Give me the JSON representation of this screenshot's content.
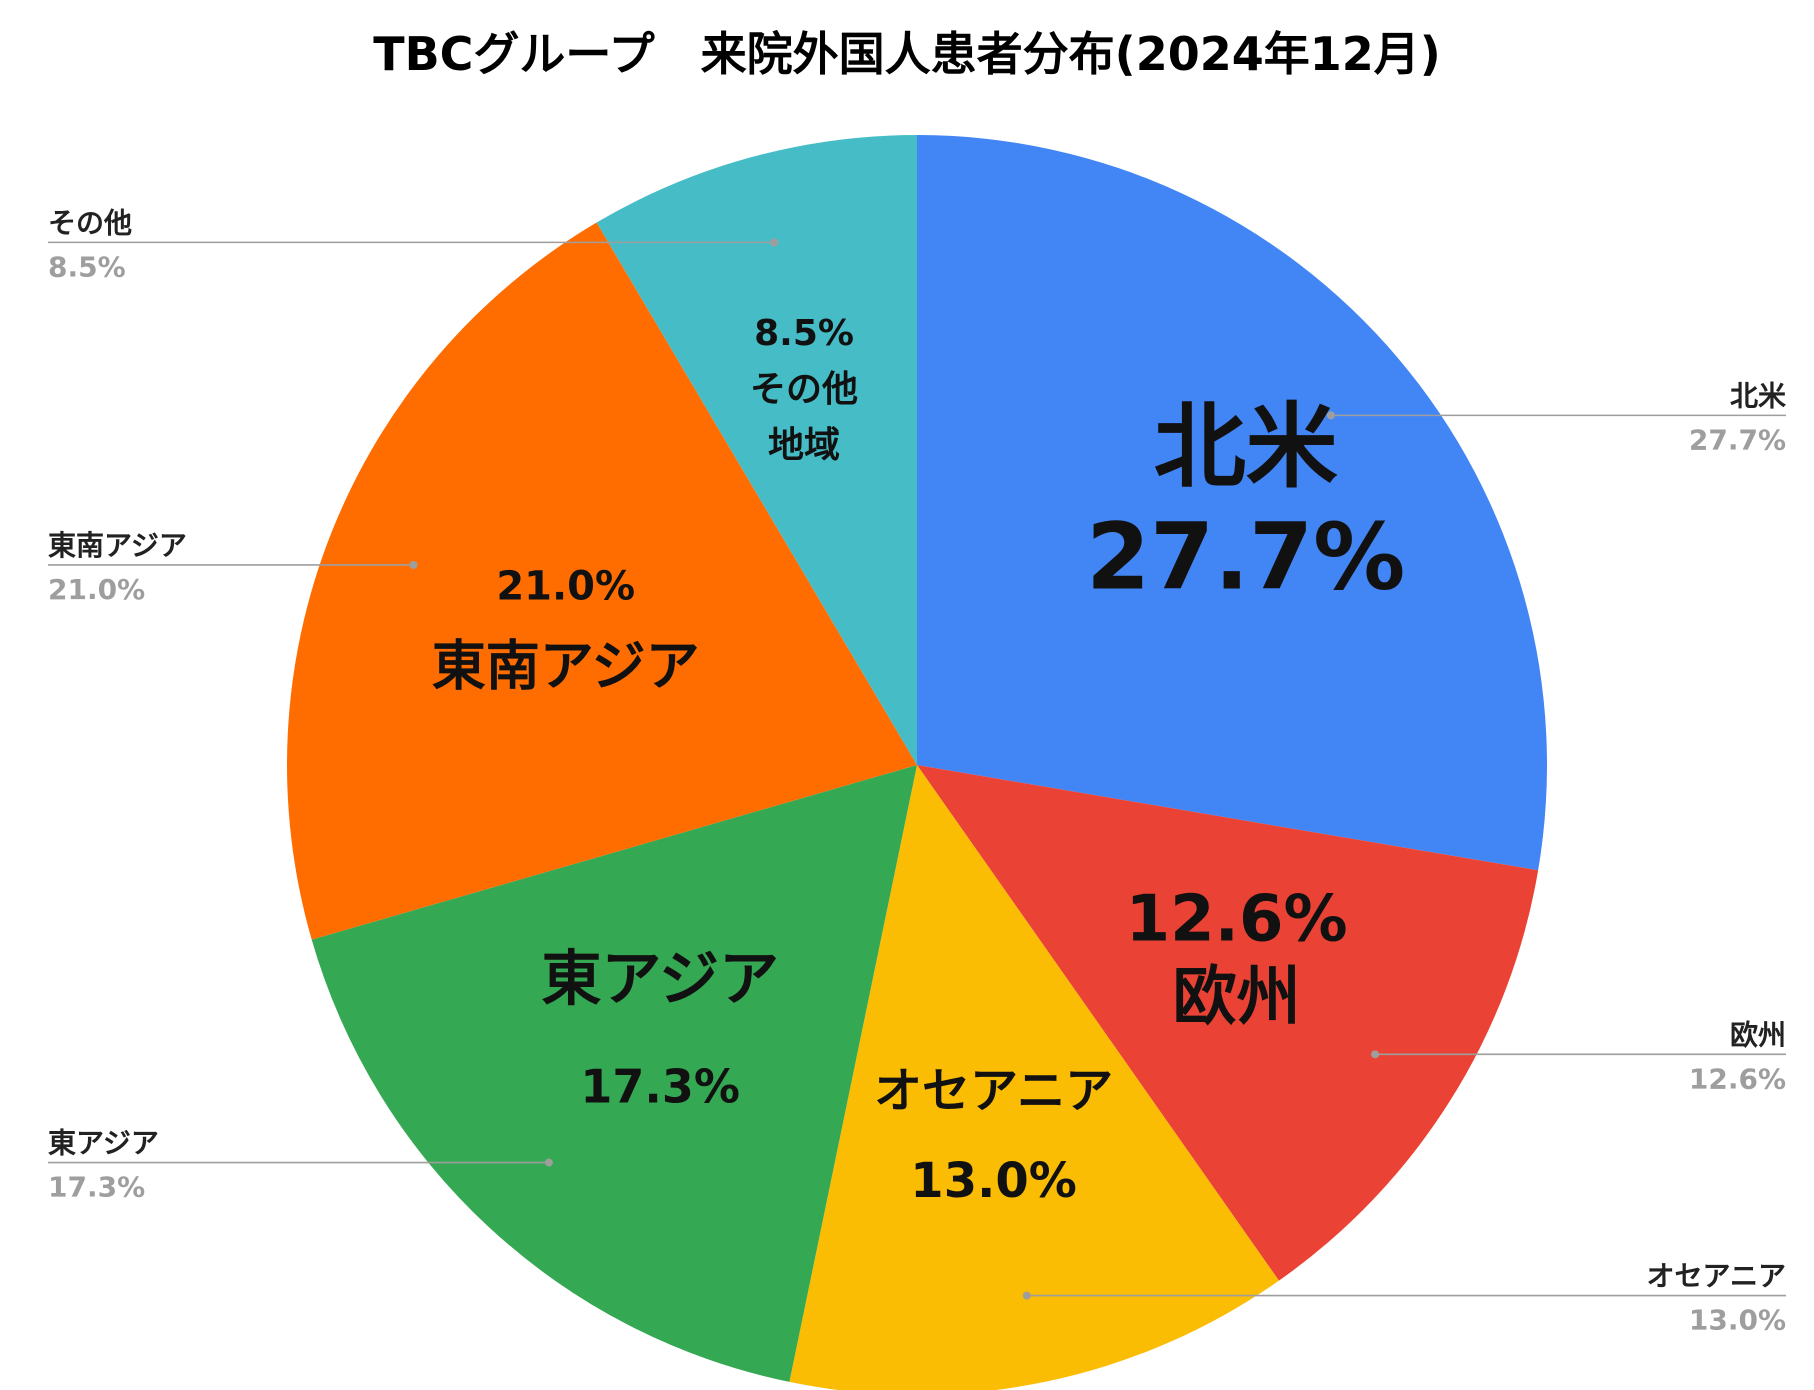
{
  "chart_data": {
    "type": "pie",
    "title": "TBCグループ　来院外国人患者分布(2024年12月)",
    "slices": [
      {
        "name": "北米",
        "value": 27.7,
        "pct_label": "27.7%",
        "inside_lines": [
          "北米",
          "27.7%"
        ],
        "color": "#4285F4"
      },
      {
        "name": "欧州",
        "value": 12.6,
        "pct_label": "12.6%",
        "inside_lines": [
          "12.6%",
          "欧州"
        ],
        "color": "#EA4335"
      },
      {
        "name": "オセアニア",
        "value": 13.0,
        "pct_label": "13.0%",
        "inside_lines": [
          "オセアニア",
          "13.0%"
        ],
        "color": "#FBBC04"
      },
      {
        "name": "東アジア",
        "value": 17.3,
        "pct_label": "17.3%",
        "inside_lines": [
          "東アジア",
          "17.3%"
        ],
        "color": "#34A853"
      },
      {
        "name": "東南アジア",
        "value": 21.0,
        "pct_label": "21.0%",
        "inside_lines": [
          "21.0%",
          "東南アジア"
        ],
        "color": "#FF6D01"
      },
      {
        "name": "その他",
        "value": 8.5,
        "pct_label": "8.5%",
        "inside_lines": [
          "8.5%",
          "その他",
          "地域"
        ],
        "color": "#46BDC6"
      }
    ]
  }
}
